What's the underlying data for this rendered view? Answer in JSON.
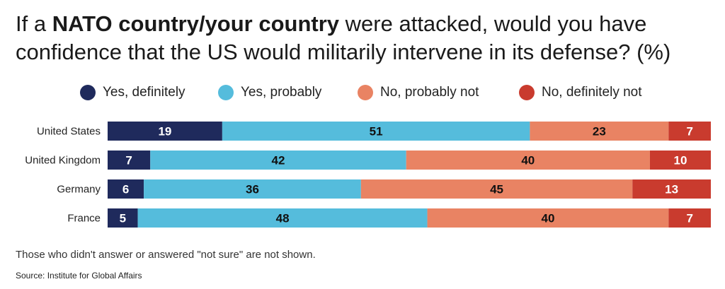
{
  "title_parts": {
    "pre": "If a ",
    "bold": "NATO country/your country",
    "post": " were attacked, would you have confidence that the US would militarily intervene in its defense? (%)"
  },
  "note": "Those who didn't answer or answered \"not sure\" are not shown.",
  "source": "Source: Institute for Global Affairs",
  "chart_data": {
    "type": "bar",
    "orientation": "horizontal",
    "stacked": true,
    "title": "If a NATO country/your country were attacked, would you have confidence that the US would militarily intervene in its defense? (%)",
    "categories": [
      "United States",
      "United Kingdom",
      "Germany",
      "France"
    ],
    "series": [
      {
        "name": "Yes, definitely",
        "color": "#1f2a5c",
        "label_color": "#ffffff",
        "values": [
          19,
          7,
          6,
          5
        ]
      },
      {
        "name": "Yes, probably",
        "color": "#55bcdc",
        "label_color": "#111111",
        "values": [
          51,
          42,
          36,
          48
        ]
      },
      {
        "name": "No, probably not",
        "color": "#e98363",
        "label_color": "#111111",
        "values": [
          23,
          40,
          45,
          40
        ]
      },
      {
        "name": "No, definitely not",
        "color": "#c93b2e",
        "label_color": "#ffffff",
        "values": [
          7,
          10,
          13,
          7
        ]
      }
    ],
    "legend_position": "top",
    "grid": false
  }
}
